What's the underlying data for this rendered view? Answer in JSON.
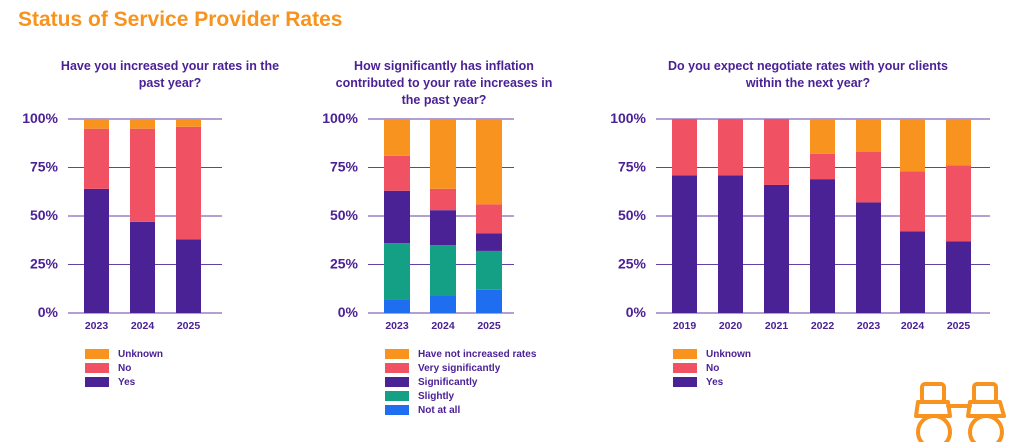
{
  "page_title": "Status of Service Provider Rates",
  "colors": {
    "Yes": "#4b2196",
    "No": "#f05263",
    "Unknown": "#f7931e",
    "Have not increased rates": "#f7931e",
    "Very significantly": "#f05263",
    "Significantly": "#4b2196",
    "Slightly": "#13a085",
    "Not at all": "#1f6ef0",
    "axis_text": "#4b2196",
    "grid": "#4b2196",
    "title": "#f7931e"
  },
  "icon": "binoculars-icon",
  "chart_data": [
    {
      "type": "bar",
      "stacked": true,
      "title": "Have you increased your rates in the past year?",
      "categories": [
        "2023",
        "2024",
        "2025"
      ],
      "yticks": [
        "0%",
        "25%",
        "50%",
        "75%",
        "100%"
      ],
      "ylim": [
        0,
        100
      ],
      "legend": [
        "Unknown",
        "No",
        "Yes"
      ],
      "series": [
        {
          "name": "Yes",
          "values": [
            64,
            47,
            38
          ]
        },
        {
          "name": "No",
          "values": [
            31,
            48,
            58
          ]
        },
        {
          "name": "Unknown",
          "values": [
            5,
            5,
            4
          ]
        }
      ]
    },
    {
      "type": "bar",
      "stacked": true,
      "title": "How significantly has inflation contributed to your rate increases in the past year?",
      "categories": [
        "2023",
        "2024",
        "2025"
      ],
      "yticks": [
        "0%",
        "25%",
        "50%",
        "75%",
        "100%"
      ],
      "ylim": [
        0,
        100
      ],
      "legend": [
        "Have not increased rates",
        "Very significantly",
        "Significantly",
        "Slightly",
        "Not at all"
      ],
      "series": [
        {
          "name": "Not at all",
          "values": [
            7,
            9,
            12
          ]
        },
        {
          "name": "Slightly",
          "values": [
            29,
            26,
            20
          ]
        },
        {
          "name": "Significantly",
          "values": [
            27,
            18,
            9
          ]
        },
        {
          "name": "Very significantly",
          "values": [
            18,
            11,
            15
          ]
        },
        {
          "name": "Have not increased rates",
          "values": [
            19,
            36,
            44
          ]
        }
      ]
    },
    {
      "type": "bar",
      "stacked": true,
      "title": "Do you expect negotiate rates with your clients within the next year?",
      "categories": [
        "2019",
        "2020",
        "2021",
        "2022",
        "2023",
        "2024",
        "2025"
      ],
      "yticks": [
        "0%",
        "25%",
        "50%",
        "75%",
        "100%"
      ],
      "ylim": [
        0,
        100
      ],
      "legend": [
        "Unknown",
        "No",
        "Yes"
      ],
      "series": [
        {
          "name": "Yes",
          "values": [
            71,
            71,
            66,
            69,
            57,
            42,
            37
          ]
        },
        {
          "name": "No",
          "values": [
            29,
            29,
            34,
            13,
            26,
            31,
            39
          ]
        },
        {
          "name": "Unknown",
          "values": [
            0,
            0,
            0,
            18,
            17,
            27,
            24
          ]
        }
      ]
    }
  ]
}
